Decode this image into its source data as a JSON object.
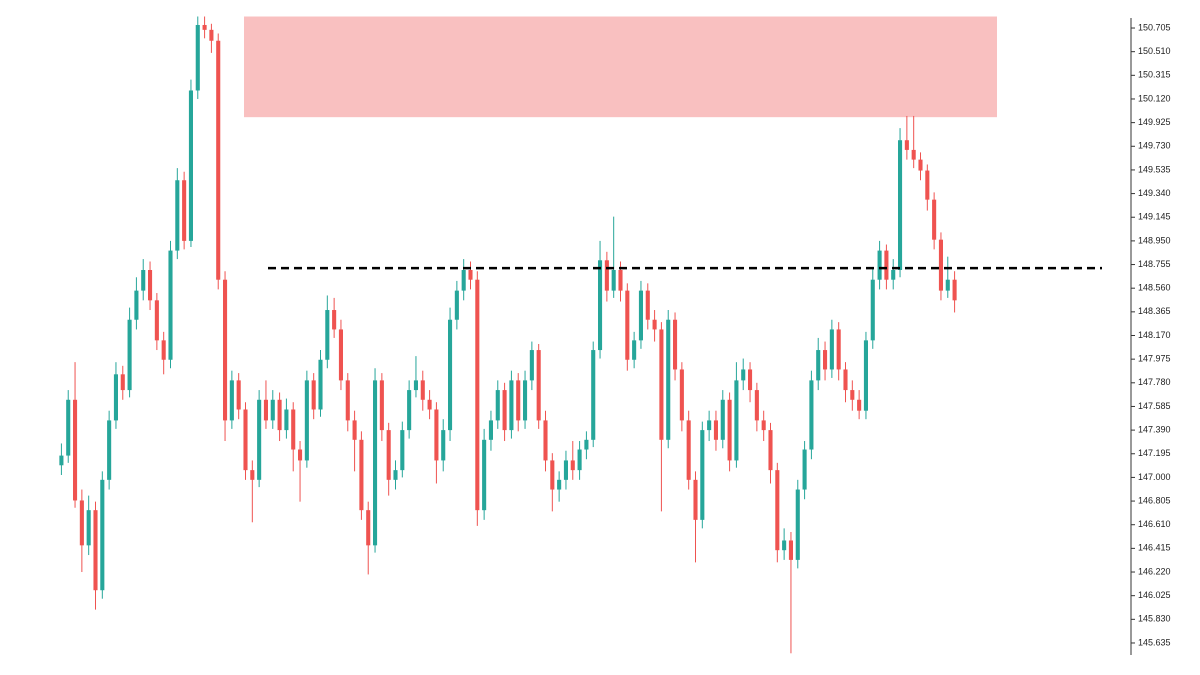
{
  "chart_data": {
    "type": "candlestick",
    "up_color": "#26a69a",
    "down_color": "#ef5350",
    "ylim": [
      145.371,
      150.936
    ],
    "yticks": [
      150.705,
      {
        "value": 150.51,
        "label": "150.510"
      },
      150.315,
      {
        "value": 150.12,
        "label": "150.120"
      },
      149.925,
      {
        "value": 149.73,
        "label": "149.730"
      },
      149.535,
      {
        "value": 149.34,
        "label": "149.340"
      },
      149.145,
      {
        "value": 148.95,
        "label": "148.950"
      },
      148.755,
      {
        "value": 148.56,
        "label": "148.560"
      },
      148.365,
      {
        "value": 148.17,
        "label": "148.170"
      },
      147.975,
      {
        "value": 147.78,
        "label": "147.780"
      },
      147.585,
      {
        "value": 147.39,
        "label": "147.390"
      },
      147.195,
      {
        "value": 147.0,
        "label": "147.000"
      },
      146.805,
      {
        "value": 146.61,
        "label": "146.610"
      },
      146.415,
      {
        "value": 146.22,
        "label": "146.220"
      },
      146.025,
      {
        "value": 145.83,
        "label": "145.830"
      },
      145.635
    ],
    "zone": {
      "low": 149.97,
      "high": 150.8,
      "color": "#f9c0c0"
    },
    "level": {
      "value": 148.725,
      "color": "#000000",
      "dashed": true
    },
    "ohlc": [
      [
        147.1,
        147.28,
        147.02,
        147.18
      ],
      [
        147.18,
        147.72,
        147.12,
        147.64
      ],
      [
        147.64,
        147.95,
        146.75,
        146.81
      ],
      [
        146.81,
        146.9,
        146.22,
        146.44
      ],
      [
        146.44,
        146.85,
        146.36,
        146.73
      ],
      [
        146.73,
        146.8,
        145.91,
        146.07
      ],
      [
        146.07,
        147.05,
        146.0,
        146.98
      ],
      [
        146.98,
        147.55,
        146.9,
        147.47
      ],
      [
        147.47,
        147.95,
        147.4,
        147.85
      ],
      [
        147.85,
        147.92,
        147.64,
        147.72
      ],
      [
        147.72,
        148.4,
        147.66,
        148.3
      ],
      [
        148.3,
        148.65,
        148.22,
        148.54
      ],
      [
        148.54,
        148.8,
        148.46,
        148.71
      ],
      [
        148.71,
        148.78,
        148.38,
        148.46
      ],
      [
        148.46,
        148.52,
        148.05,
        148.13
      ],
      [
        148.13,
        148.2,
        147.85,
        147.97
      ],
      [
        147.97,
        148.95,
        147.9,
        148.87
      ],
      [
        148.87,
        149.55,
        148.8,
        149.45
      ],
      [
        149.45,
        149.52,
        148.88,
        148.95
      ],
      [
        148.95,
        150.28,
        148.9,
        150.19
      ],
      [
        150.19,
        150.8,
        150.12,
        150.73
      ],
      [
        150.73,
        150.8,
        150.62,
        150.69
      ],
      [
        150.69,
        150.74,
        150.5,
        150.6
      ],
      [
        150.6,
        150.66,
        148.55,
        148.63
      ],
      [
        148.63,
        148.7,
        147.3,
        147.47
      ],
      [
        147.47,
        147.88,
        147.4,
        147.8
      ],
      [
        147.8,
        147.86,
        147.48,
        147.56
      ],
      [
        147.56,
        147.62,
        146.98,
        147.06
      ],
      [
        147.06,
        147.14,
        146.63,
        146.98
      ],
      [
        146.98,
        147.72,
        146.92,
        147.64
      ],
      [
        147.64,
        147.8,
        147.4,
        147.47
      ],
      [
        147.47,
        147.72,
        147.4,
        147.64
      ],
      [
        147.64,
        147.7,
        147.3,
        147.39
      ],
      [
        147.39,
        147.65,
        147.32,
        147.56
      ],
      [
        147.56,
        147.62,
        147.05,
        147.23
      ],
      [
        147.23,
        147.3,
        146.8,
        147.14
      ],
      [
        147.14,
        147.88,
        147.08,
        147.8
      ],
      [
        147.8,
        147.86,
        147.48,
        147.56
      ],
      [
        147.56,
        148.05,
        147.5,
        147.97
      ],
      [
        147.97,
        148.5,
        147.9,
        148.38
      ],
      [
        148.38,
        148.48,
        148.15,
        148.22
      ],
      [
        148.22,
        148.3,
        147.72,
        147.8
      ],
      [
        147.8,
        147.86,
        147.38,
        147.47
      ],
      [
        147.47,
        147.55,
        147.05,
        147.31
      ],
      [
        147.31,
        147.38,
        146.65,
        146.73
      ],
      [
        146.73,
        146.8,
        146.2,
        146.44
      ],
      [
        146.44,
        147.9,
        146.38,
        147.8
      ],
      [
        147.8,
        147.86,
        147.3,
        147.39
      ],
      [
        147.39,
        147.45,
        146.85,
        146.98
      ],
      [
        146.98,
        147.14,
        146.9,
        147.06
      ],
      [
        147.06,
        147.46,
        147.0,
        147.39
      ],
      [
        147.39,
        147.8,
        147.32,
        147.72
      ],
      [
        147.72,
        148.0,
        147.66,
        147.8
      ],
      [
        147.8,
        147.88,
        147.55,
        147.64
      ],
      [
        147.64,
        147.72,
        147.48,
        147.56
      ],
      [
        147.56,
        147.62,
        146.95,
        147.14
      ],
      [
        147.14,
        147.48,
        147.05,
        147.39
      ],
      [
        147.39,
        148.4,
        147.3,
        148.3
      ],
      [
        148.3,
        148.62,
        148.22,
        148.54
      ],
      [
        148.54,
        148.8,
        148.46,
        148.71
      ],
      [
        148.71,
        148.78,
        148.55,
        148.63
      ],
      [
        148.63,
        148.7,
        146.6,
        146.73
      ],
      [
        146.73,
        147.4,
        146.65,
        147.31
      ],
      [
        147.31,
        147.55,
        147.22,
        147.47
      ],
      [
        147.47,
        147.8,
        147.4,
        147.72
      ],
      [
        147.72,
        147.78,
        147.3,
        147.39
      ],
      [
        147.39,
        147.88,
        147.32,
        147.8
      ],
      [
        147.8,
        147.86,
        147.38,
        147.47
      ],
      [
        147.47,
        147.88,
        147.4,
        147.8
      ],
      [
        147.8,
        148.12,
        147.72,
        148.05
      ],
      [
        148.05,
        148.1,
        147.4,
        147.47
      ],
      [
        147.47,
        147.55,
        147.05,
        147.14
      ],
      [
        147.14,
        147.2,
        146.72,
        146.9
      ],
      [
        146.9,
        147.05,
        146.8,
        146.98
      ],
      [
        146.98,
        147.22,
        146.9,
        147.14
      ],
      [
        147.14,
        147.3,
        146.98,
        147.06
      ],
      [
        147.06,
        147.3,
        146.98,
        147.23
      ],
      [
        147.23,
        147.38,
        147.15,
        147.31
      ],
      [
        147.31,
        148.12,
        147.25,
        148.05
      ],
      [
        148.05,
        148.95,
        147.98,
        148.79
      ],
      [
        148.79,
        148.86,
        148.45,
        148.54
      ],
      [
        148.54,
        149.15,
        148.48,
        148.71
      ],
      [
        148.71,
        148.78,
        148.45,
        148.54
      ],
      [
        148.54,
        148.6,
        147.88,
        147.97
      ],
      [
        147.97,
        148.2,
        147.9,
        148.13
      ],
      [
        148.13,
        148.62,
        148.06,
        148.54
      ],
      [
        148.54,
        148.6,
        148.22,
        148.3
      ],
      [
        148.3,
        148.38,
        148.12,
        148.22
      ],
      [
        148.22,
        148.28,
        146.72,
        147.31
      ],
      [
        147.31,
        148.38,
        147.24,
        148.3
      ],
      [
        148.3,
        148.36,
        147.8,
        147.89
      ],
      [
        147.89,
        147.95,
        147.38,
        147.47
      ],
      [
        147.47,
        147.55,
        146.9,
        146.98
      ],
      [
        146.98,
        147.05,
        146.3,
        146.65
      ],
      [
        146.65,
        147.46,
        146.58,
        147.39
      ],
      [
        147.39,
        147.55,
        147.3,
        147.47
      ],
      [
        147.47,
        147.55,
        147.22,
        147.31
      ],
      [
        147.31,
        147.72,
        147.24,
        147.64
      ],
      [
        147.64,
        147.7,
        147.05,
        147.14
      ],
      [
        147.14,
        147.95,
        147.08,
        147.8
      ],
      [
        147.8,
        147.98,
        147.72,
        147.89
      ],
      [
        147.89,
        147.95,
        147.62,
        147.72
      ],
      [
        147.72,
        147.78,
        147.38,
        147.47
      ],
      [
        147.47,
        147.55,
        147.3,
        147.39
      ],
      [
        147.39,
        147.45,
        146.95,
        147.06
      ],
      [
        147.06,
        147.12,
        146.3,
        146.4
      ],
      [
        146.4,
        146.58,
        146.32,
        146.48
      ],
      [
        146.48,
        146.55,
        145.55,
        146.32
      ],
      [
        146.32,
        146.98,
        146.25,
        146.9
      ],
      [
        146.9,
        147.3,
        146.82,
        147.23
      ],
      [
        147.23,
        147.88,
        147.15,
        147.8
      ],
      [
        147.8,
        148.15,
        147.72,
        148.05
      ],
      [
        148.05,
        148.12,
        147.8,
        147.89
      ],
      [
        147.89,
        148.3,
        147.82,
        148.22
      ],
      [
        148.22,
        148.28,
        147.8,
        147.89
      ],
      [
        147.89,
        147.95,
        147.62,
        147.72
      ],
      [
        147.72,
        147.8,
        147.55,
        147.64
      ],
      [
        147.64,
        147.72,
        147.48,
        147.55
      ],
      [
        147.55,
        148.2,
        147.48,
        148.13
      ],
      [
        148.13,
        148.72,
        148.06,
        148.63
      ],
      [
        148.63,
        148.95,
        148.55,
        148.87
      ],
      [
        148.87,
        148.92,
        148.55,
        148.63
      ],
      [
        148.63,
        148.8,
        148.55,
        148.71
      ],
      [
        148.71,
        149.88,
        148.65,
        149.78
      ],
      [
        149.78,
        149.98,
        149.62,
        149.7
      ],
      [
        149.7,
        149.98,
        149.55,
        149.62
      ],
      [
        149.62,
        149.68,
        149.45,
        149.53
      ],
      [
        149.53,
        149.58,
        149.2,
        149.29
      ],
      [
        149.29,
        149.35,
        148.88,
        148.96
      ],
      [
        148.96,
        149.02,
        148.46,
        148.54
      ],
      [
        148.54,
        148.82,
        148.48,
        148.63
      ],
      [
        148.63,
        148.7,
        148.36,
        148.46
      ]
    ]
  }
}
